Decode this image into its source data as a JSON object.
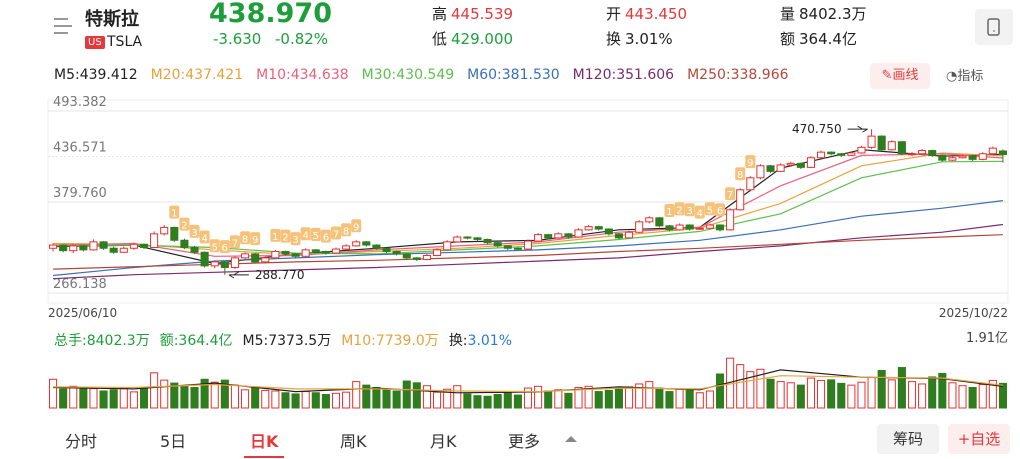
{
  "header": {
    "name": "特斯拉",
    "market": "US",
    "ticker": "TSLA",
    "price": "438.970",
    "change": "-3.630",
    "change_pct": "-0.82%",
    "stats": [
      [
        "高",
        "445.539"
      ],
      [
        "低",
        "429.000"
      ],
      [
        "开",
        "443.450"
      ],
      [
        "换",
        "3.01%"
      ],
      [
        "量",
        "8402.3万"
      ],
      [
        "额",
        "364.4亿"
      ]
    ],
    "tools": [
      "画线",
      "指标"
    ]
  },
  "chart_data": {
    "type": "candlestick",
    "ylim": [
      266.138,
      493.382
    ],
    "yticks": [
      493.382,
      436.571,
      {
        "value": 379.76,
        "label": "379.760"
      },
      266.138
    ],
    "grid": true,
    "up_color": "#e93030",
    "down_color": "#2f7d1f",
    "date_start": "2025/06/10",
    "date_end": "2025/10/22",
    "candles": [
      [
        322,
        328,
        318,
        326
      ],
      [
        326,
        327,
        317,
        319
      ],
      [
        319,
        327,
        316,
        325
      ],
      [
        325,
        326,
        318,
        320
      ],
      [
        320,
        333,
        319,
        330
      ],
      [
        330,
        331,
        320,
        322
      ],
      [
        322,
        324,
        315,
        317
      ],
      [
        317,
        324,
        316,
        322
      ],
      [
        322,
        329,
        320,
        327
      ],
      [
        327,
        328,
        321,
        323
      ],
      [
        323,
        343,
        322,
        340
      ],
      [
        340,
        351,
        338,
        348
      ],
      [
        348,
        349,
        330,
        332
      ],
      [
        332,
        334,
        321,
        323
      ],
      [
        323,
        325,
        315,
        317
      ],
      [
        317,
        318,
        298,
        300
      ],
      [
        300,
        307,
        297,
        305
      ],
      [
        305,
        306,
        288.77,
        298
      ],
      [
        298,
        312,
        296,
        310
      ],
      [
        310,
        317,
        308,
        315
      ],
      [
        315,
        316,
        303,
        305
      ],
      [
        305,
        312,
        303,
        310
      ],
      [
        310,
        320,
        309,
        318
      ],
      [
        318,
        319,
        313,
        315
      ],
      [
        315,
        316,
        310,
        312
      ],
      [
        312,
        322,
        311,
        320
      ],
      [
        320,
        321,
        316,
        318
      ],
      [
        318,
        319,
        314,
        316
      ],
      [
        316,
        323,
        315,
        321
      ],
      [
        321,
        327,
        320,
        325
      ],
      [
        325,
        332,
        324,
        330
      ],
      [
        330,
        331,
        324,
        326
      ],
      [
        326,
        327,
        320,
        322
      ],
      [
        322,
        323,
        316,
        318
      ],
      [
        318,
        319,
        313,
        315
      ],
      [
        315,
        316,
        308,
        310
      ],
      [
        310,
        311,
        306,
        308
      ],
      [
        308,
        315,
        307,
        313
      ],
      [
        313,
        322,
        312,
        320
      ],
      [
        320,
        332,
        319,
        330
      ],
      [
        330,
        338,
        329,
        336
      ],
      [
        336,
        337,
        333,
        335
      ],
      [
        335,
        336,
        331,
        333
      ],
      [
        333,
        334,
        327,
        329
      ],
      [
        329,
        330,
        323,
        325
      ],
      [
        325,
        326,
        320,
        322
      ],
      [
        322,
        323,
        319,
        321
      ],
      [
        321,
        333,
        320,
        331
      ],
      [
        331,
        341,
        330,
        339
      ],
      [
        339,
        340,
        333,
        335
      ],
      [
        335,
        342,
        334,
        340
      ],
      [
        340,
        341,
        334,
        336
      ],
      [
        336,
        347,
        335,
        345
      ],
      [
        345,
        351,
        344,
        349
      ],
      [
        349,
        350,
        344,
        346
      ],
      [
        346,
        347,
        338,
        340
      ],
      [
        340,
        341,
        333,
        335
      ],
      [
        335,
        344,
        334,
        342
      ],
      [
        342,
        357,
        341,
        355
      ],
      [
        355,
        362,
        353,
        360
      ],
      [
        360,
        361,
        348,
        350
      ],
      [
        350,
        351,
        343,
        345
      ],
      [
        345,
        353,
        344,
        351
      ],
      [
        351,
        352,
        344,
        346
      ],
      [
        346,
        349,
        345,
        347
      ],
      [
        347,
        353,
        346,
        351
      ],
      [
        351,
        352,
        343,
        345
      ],
      [
        345,
        372,
        344,
        370
      ],
      [
        370,
        397,
        369,
        395
      ],
      [
        395,
        412,
        393,
        410
      ],
      [
        410,
        427,
        408,
        425
      ],
      [
        425,
        426,
        416,
        418
      ],
      [
        418,
        428,
        417,
        426
      ],
      [
        426,
        430,
        424,
        428
      ],
      [
        428,
        429,
        421,
        423
      ],
      [
        423,
        437,
        422,
        435
      ],
      [
        435,
        444,
        434,
        442
      ],
      [
        442,
        443,
        438,
        440
      ],
      [
        440,
        441,
        436,
        438
      ],
      [
        438,
        443,
        437,
        441
      ],
      [
        441,
        450,
        440,
        448
      ],
      [
        448,
        470.75,
        446,
        462
      ],
      [
        462,
        463,
        443,
        445
      ],
      [
        445,
        457,
        444,
        455
      ],
      [
        455,
        456,
        438,
        440
      ],
      [
        440,
        442,
        437,
        440
      ],
      [
        440,
        446,
        439,
        444
      ],
      [
        444,
        445,
        436,
        438
      ],
      [
        438,
        439,
        430,
        432
      ],
      [
        432,
        437,
        431,
        435
      ],
      [
        435,
        439,
        434,
        437
      ],
      [
        437,
        438,
        431,
        433
      ],
      [
        433,
        442,
        432,
        440
      ],
      [
        440,
        449,
        439,
        447
      ],
      [
        443.45,
        445.539,
        429,
        438.97
      ]
    ],
    "td": [
      null,
      null,
      null,
      null,
      null,
      null,
      null,
      null,
      null,
      null,
      null,
      null,
      "1",
      "2",
      "3",
      "4",
      "5",
      "6",
      "7",
      "8",
      "9",
      null,
      "1",
      "2",
      "3",
      "4",
      "5",
      "6",
      "7",
      "8",
      "9",
      null,
      null,
      null,
      null,
      null,
      null,
      null,
      null,
      null,
      null,
      null,
      null,
      null,
      null,
      null,
      null,
      null,
      null,
      null,
      null,
      null,
      null,
      null,
      null,
      null,
      null,
      null,
      null,
      null,
      null,
      "1",
      "2",
      "3",
      "4",
      "5",
      "6",
      "7",
      "8",
      "9",
      null,
      null,
      null,
      null,
      null,
      null,
      null,
      null,
      null,
      null,
      null,
      null,
      null,
      null,
      null,
      null,
      null,
      null,
      null,
      null,
      null,
      null,
      null,
      null,
      null
    ],
    "annotations": [
      {
        "text": "470.750",
        "value": 470.75,
        "side": "left"
      },
      {
        "text": "288.770",
        "value": 288.77,
        "side": "right"
      }
    ],
    "ma_x": [
      0,
      8,
      16,
      24,
      32,
      40,
      48,
      56,
      64,
      72,
      80,
      88,
      94
    ],
    "ma": [
      {
        "name": "M5",
        "legend": "M5:439.412",
        "color": "#222222",
        "values": [
          324,
          326,
          303,
          315,
          322,
          330,
          332,
          345,
          348,
          422,
          445,
          437,
          439.412
        ]
      },
      {
        "name": "M20",
        "legend": "M20:437.421",
        "color": "#e8a33d",
        "values": [
          328,
          327,
          320,
          314,
          318,
          322,
          328,
          338,
          347,
          378,
          425,
          441,
          437.421
        ]
      },
      {
        "name": "M10",
        "legend": "M10:434.638",
        "color": "#ec5f7e",
        "values": [
          326,
          328,
          312,
          313,
          320,
          325,
          330,
          342,
          348,
          400,
          438,
          440,
          434.638
        ]
      },
      {
        "name": "M30",
        "legend": "M30:430.549",
        "color": "#5fbf4f",
        "values": [
          325,
          326,
          323,
          316,
          315,
          320,
          325,
          333,
          343,
          365,
          410,
          430,
          430.549
        ]
      },
      {
        "name": "M60",
        "legend": "M60:381.530",
        "color": "#3a70b8",
        "values": [
          288,
          298,
          306,
          310,
          314,
          317,
          320,
          325,
          332,
          345,
          362,
          372,
          381.53
        ]
      },
      {
        "name": "M120",
        "legend": "M120:351.606",
        "color": "#7a2c6c",
        "values": [
          284,
          289,
          292,
          295,
          298,
          302,
          306,
          310,
          318,
          325,
          335,
          342,
          351.606
        ]
      },
      {
        "name": "M250",
        "legend": "M250:338.966",
        "color": "#b5473a",
        "values": [
          296,
          299,
          302,
          305,
          307,
          310,
          313,
          318,
          322,
          327,
          332,
          336,
          338.966
        ]
      }
    ],
    "volume": {
      "ylim": [
        0,
        19100
      ],
      "yticks": [
        {
          "value": 19100,
          "label": "1.91亿"
        }
      ],
      "values": [
        9800,
        6500,
        7400,
        7000,
        6600,
        5800,
        6200,
        6800,
        5500,
        7000,
        12000,
        9500,
        8500,
        7500,
        7000,
        9800,
        8800,
        9500,
        7800,
        6200,
        7200,
        6000,
        5800,
        5200,
        4800,
        5600,
        5200,
        4600,
        5000,
        5400,
        9000,
        7800,
        7000,
        6200,
        5800,
        9200,
        8600,
        7600,
        5400,
        6400,
        7600,
        4800,
        4200,
        4000,
        4600,
        5200,
        4400,
        6800,
        7400,
        5800,
        6200,
        5000,
        7000,
        7400,
        5600,
        6000,
        6600,
        7200,
        8200,
        9000,
        6800,
        5600,
        6400,
        6000,
        5200,
        5800,
        11600,
        17000,
        14800,
        12400,
        13200,
        9800,
        9000,
        8600,
        7800,
        10200,
        9400,
        9600,
        8400,
        7800,
        8800,
        10400,
        12800,
        9600,
        13800,
        9000,
        8200,
        10600,
        11800,
        8600,
        7600,
        7000,
        8000,
        9400,
        8402.3
      ],
      "legend": [
        "总手:8402.3万",
        "额:364.4亿"
      ],
      "ma": [
        {
          "legend": "M5:7373.5万",
          "color": "#222222",
          "values": [
            7000,
            6500,
            8500,
            5600,
            6800,
            5200,
            5500,
            7200,
            6200,
            13000,
            10500,
            10000,
            7373.5
          ]
        },
        {
          "legend": "M10:7739.0万",
          "color": "#e8a33d",
          "values": [
            7200,
            7000,
            8000,
            6500,
            6500,
            5800,
            5600,
            6800,
            6500,
            11000,
            10500,
            10200,
            7739
          ]
        }
      ],
      "turnover_label": "换:",
      "turnover": "3.01%"
    }
  },
  "tabs": {
    "items": [
      "分时",
      "5日",
      "日K",
      "周K",
      "月K",
      "更多"
    ],
    "active": 2,
    "buttons": [
      "筹码",
      "+自选"
    ]
  }
}
